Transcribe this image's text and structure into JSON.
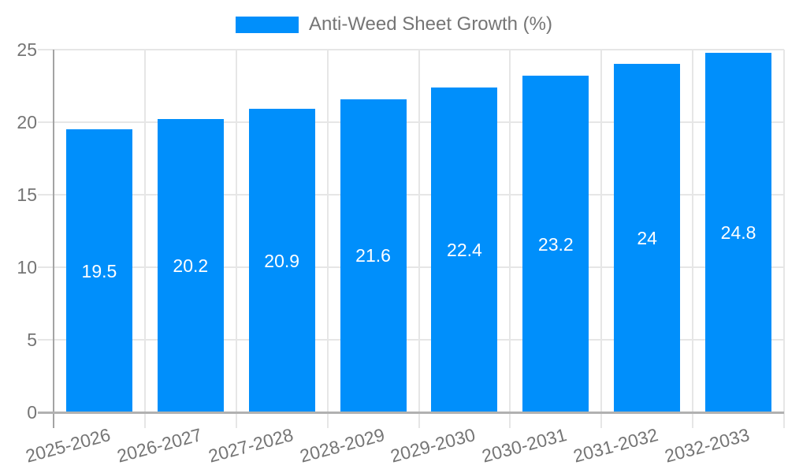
{
  "legend": {
    "label": "Anti-Weed Sheet Growth (%)"
  },
  "chart_data": {
    "type": "bar",
    "title": "Anti-Weed Sheet Growth (%)",
    "categories": [
      "2025-2026",
      "2026-2027",
      "2027-2028",
      "2028-2029",
      "2029-2030",
      "2030-2031",
      "2031-2032",
      "2032-2033"
    ],
    "series": [
      {
        "name": "Anti-Weed Sheet Growth (%)",
        "values": [
          19.5,
          20.2,
          20.9,
          21.6,
          22.4,
          23.2,
          24,
          24.8
        ],
        "value_labels": [
          "19.5",
          "20.2",
          "20.9",
          "21.6",
          "22.4",
          "23.2",
          "24",
          "24.8"
        ]
      }
    ],
    "xlabel": "",
    "ylabel": "",
    "ylim": [
      0,
      25
    ],
    "yticks": [
      0,
      5,
      10,
      15,
      20,
      25
    ],
    "ytick_labels": [
      "0",
      "5",
      "10",
      "15",
      "20",
      "25"
    ],
    "grid": true,
    "legend_position": "top-center",
    "colors": {
      "bar": "#008FFB",
      "value_label": "#ffffff",
      "axis_label": "#757575",
      "gridline": "#e6e6e6",
      "baseline": "#b1b1b1",
      "y_axis_line": "#a3a3a3",
      "background": "#ffffff"
    }
  }
}
